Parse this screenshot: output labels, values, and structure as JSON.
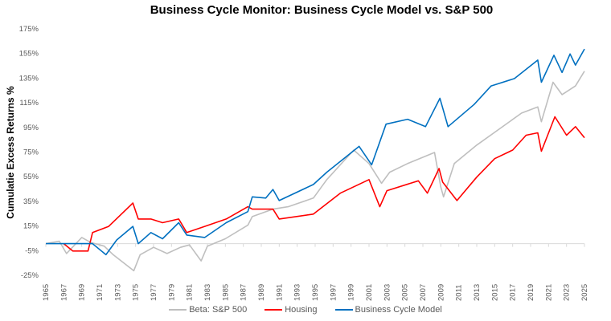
{
  "chart_data": {
    "type": "line",
    "title": "Business Cycle Monitor: Business Cycle Model vs. S&P 500",
    "xlabel": "",
    "ylabel": "Cumulatie Excess Returns %",
    "xlim": [
      1965,
      2025
    ],
    "ylim": [
      -25,
      175
    ],
    "x_ticks": [
      "1965",
      "1967",
      "1969",
      "1971",
      "1973",
      "1975",
      "1977",
      "1979",
      "1981",
      "1983",
      "1985",
      "1987",
      "1989",
      "1991",
      "1993",
      "1995",
      "1997",
      "1999",
      "2001",
      "2003",
      "2005",
      "2007",
      "2009",
      "2011",
      "2013",
      "2015",
      "2017",
      "2019",
      "2021",
      "2023",
      "2025"
    ],
    "y_ticks": [
      "175%",
      "155%",
      "135%",
      "115%",
      "95%",
      "75%",
      "55%",
      "35%",
      "15%",
      "-5%",
      "-25%"
    ],
    "y_tick_values": [
      175,
      155,
      135,
      115,
      95,
      75,
      55,
      35,
      15,
      -5,
      -25
    ],
    "grid": false,
    "legend_position": "bottom",
    "series": [
      {
        "name": "Beta: S&P 500",
        "color": "#BFBFBF",
        "x": [
          1965,
          1966.5,
          1967.3,
          1969,
          1970,
          1971.5,
          1972.5,
          1974.8,
          1975.5,
          1977,
          1978.5,
          1980,
          1981,
          1982.3,
          1983,
          1985,
          1987.5,
          1988,
          1990.3,
          1992,
          1994.8,
          1996.3,
          1999.3,
          2001,
          2002.4,
          2003.3,
          2005.3,
          2008.3,
          2009,
          2009.3,
          2010.5,
          2013,
          2015.5,
          2018,
          2019.8,
          2020.2,
          2021.5,
          2022.5,
          2024,
          2025
        ],
        "y": [
          0,
          2,
          -8,
          5,
          1,
          -2,
          -9,
          -22,
          -9,
          -3,
          -8,
          -3,
          -1,
          -14,
          -2,
          4,
          15,
          22,
          28,
          30,
          37,
          52,
          76,
          65,
          49,
          58,
          65,
          74,
          46,
          38,
          65,
          80,
          93,
          106,
          111,
          99,
          131,
          121,
          128,
          140
        ]
      },
      {
        "name": "Housing",
        "color": "#FF0000",
        "x": [
          1967,
          1968,
          1969.7,
          1970.2,
          1972,
          1974.7,
          1975.3,
          1976.7,
          1978,
          1979.8,
          1980.7,
          1982.7,
          1985.1,
          1987.5,
          1988,
          1990.3,
          1991,
          1994.8,
          1997.8,
          2001,
          2002.2,
          2003,
          2006.5,
          2007.5,
          2008.8,
          2009.2,
          2010.8,
          2013,
          2015,
          2017,
          2018.5,
          2019.8,
          2020.2,
          2021.7,
          2023,
          2024,
          2025
        ],
        "y": [
          0,
          -6,
          -6,
          9,
          14,
          33,
          20,
          20,
          17,
          20,
          9,
          14,
          20,
          30,
          28,
          28,
          20,
          24,
          41,
          52,
          30,
          43,
          51,
          41,
          61,
          50,
          35,
          54,
          69,
          76,
          88,
          90,
          75,
          103,
          88,
          95,
          86
        ]
      },
      {
        "name": "Business Cycle Model",
        "color": "#0070C0",
        "x": [
          1965,
          1967,
          1970.2,
          1971.7,
          1972.9,
          1974.7,
          1975.3,
          1976.7,
          1978,
          1979.8,
          1980.7,
          1982.7,
          1985.1,
          1987.5,
          1988,
          1989.5,
          1990.3,
          1991,
          1994.8,
          1996.3,
          1999.9,
          2001.3,
          2002.9,
          2005.3,
          2007.3,
          2008.9,
          2009.8,
          2012.7,
          2014.6,
          2017.2,
          2019.8,
          2020.2,
          2021.6,
          2022.5,
          2023.4,
          2024,
          2025
        ],
        "y": [
          0,
          0,
          0,
          -9,
          3,
          14,
          0,
          9,
          4,
          17,
          7,
          5,
          17,
          26,
          38,
          37,
          44,
          35,
          48,
          58,
          79,
          64,
          97,
          101,
          95,
          118,
          95,
          113,
          128,
          134,
          149,
          131,
          153,
          139,
          154,
          145,
          158
        ]
      }
    ]
  }
}
